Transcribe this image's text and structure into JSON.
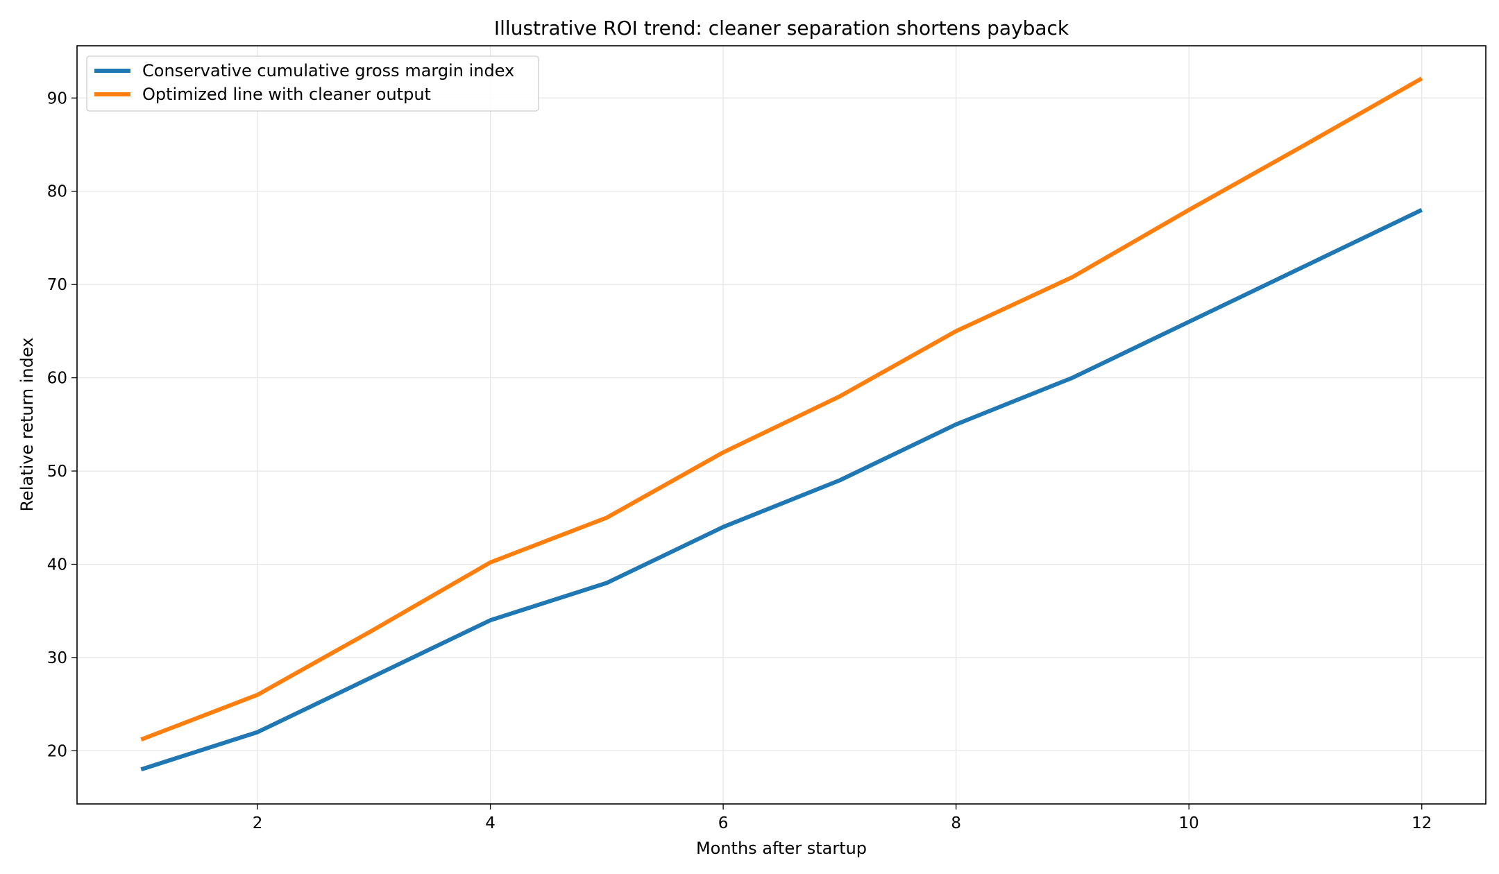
{
  "chart_data": {
    "type": "line",
    "title": "Illustrative ROI trend: cleaner separation shortens payback",
    "xlabel": "Months after startup",
    "ylabel": "Relative return index",
    "x": [
      1,
      2,
      3,
      4,
      5,
      6,
      7,
      8,
      9,
      10,
      11,
      12
    ],
    "series": [
      {
        "name": "Conservative cumulative gross margin index",
        "color": "#1f77b4",
        "values": [
          18,
          22,
          28,
          34,
          38,
          44,
          49,
          55,
          60,
          66,
          72,
          78
        ]
      },
      {
        "name": "Optimized line with cleaner output",
        "color": "#ff7f0e",
        "values": [
          21.2,
          26,
          33,
          40.2,
          45,
          52,
          58,
          65,
          70.8,
          78,
          85,
          92.1
        ]
      }
    ],
    "xlim": [
      0.45,
      12.55
    ],
    "ylim": [
      14.3,
      95.6
    ],
    "xticks": [
      2,
      4,
      6,
      8,
      10,
      12
    ],
    "xtick_labels": [
      "2",
      "4",
      "6",
      "8",
      "10",
      "12"
    ],
    "yticks": [
      20,
      30,
      40,
      50,
      60,
      70,
      80,
      90
    ],
    "ytick_labels": [
      "20",
      "30",
      "40",
      "50",
      "60",
      "70",
      "80",
      "90"
    ],
    "grid": true,
    "legend_position": "top-left"
  }
}
